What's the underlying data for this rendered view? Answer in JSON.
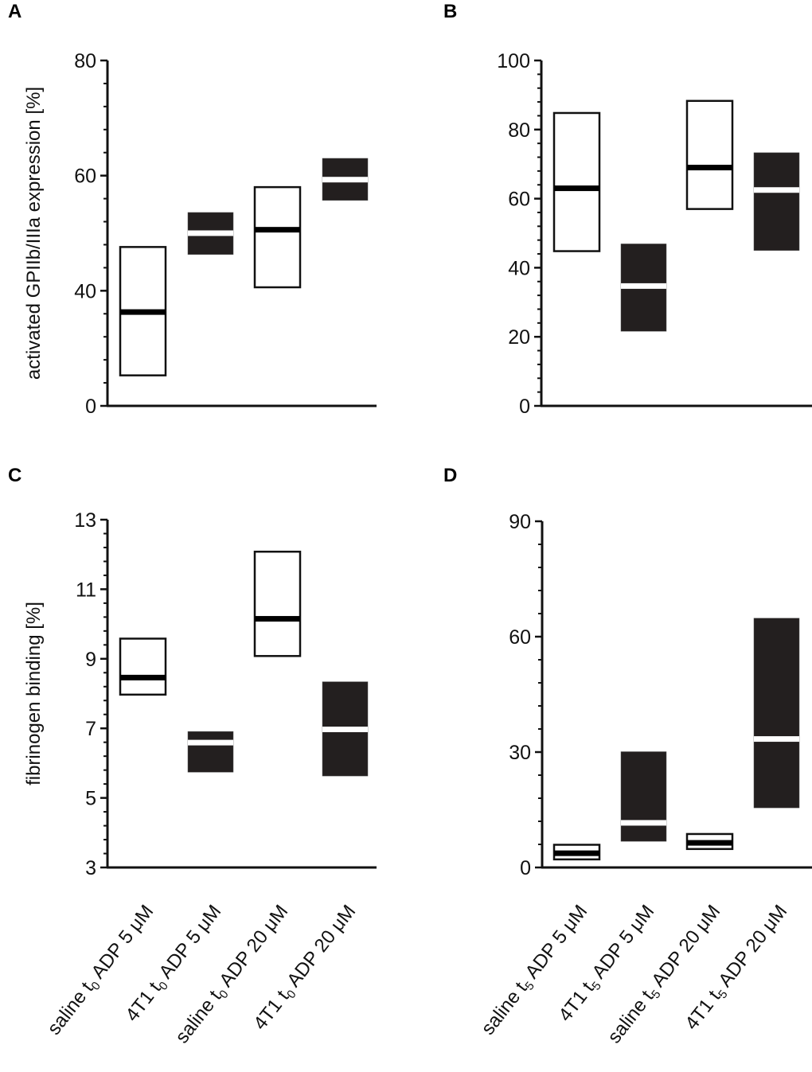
{
  "chart_data": [
    {
      "panel": "A",
      "type": "box",
      "ylabel": "activated GPIIb/IIIa expression [%]",
      "ylim": [
        20,
        80
      ],
      "axis_break": true,
      "yticks": [
        {
          "label": "0",
          "value": 20
        },
        {
          "label": "40",
          "value": 40
        },
        {
          "label": "60",
          "value": 60
        },
        {
          "label": "80",
          "value": 80
        }
      ],
      "minor_tick_step": 4,
      "categories": [
        {
          "pre": "saline t",
          "sub": "0",
          "post": " ADP 5 μM"
        },
        {
          "pre": "4T1 t",
          "sub": "0",
          "post": " ADP 5 μM"
        },
        {
          "pre": "saline t",
          "sub": "0",
          "post": " ADP 20 μM"
        },
        {
          "pre": "4T1 t",
          "sub": "0",
          "post": " ADP 20 μM"
        }
      ],
      "boxes": [
        {
          "group": "saline",
          "filled": false,
          "low": 25.3,
          "median": 36.3,
          "high": 47.6
        },
        {
          "group": "4T1",
          "filled": true,
          "low": 46.3,
          "median": 50.0,
          "high": 53.6
        },
        {
          "group": "saline",
          "filled": false,
          "low": 40.6,
          "median": 50.6,
          "high": 58.0
        },
        {
          "group": "4T1",
          "filled": true,
          "low": 55.7,
          "median": 59.3,
          "high": 63.0
        }
      ]
    },
    {
      "panel": "B",
      "type": "box",
      "ylabel": "",
      "ylim": [
        0,
        100
      ],
      "axis_break": false,
      "yticks": [
        {
          "label": "0",
          "value": 0
        },
        {
          "label": "20",
          "value": 20
        },
        {
          "label": "40",
          "value": 40
        },
        {
          "label": "60",
          "value": 60
        },
        {
          "label": "80",
          "value": 80
        },
        {
          "label": "100",
          "value": 100
        }
      ],
      "minor_tick_step": 4,
      "categories": [
        {
          "pre": "saline t",
          "sub": "5",
          "post": " ADP 5 μM"
        },
        {
          "pre": "4T1 t",
          "sub": "5",
          "post": " ADP 5 μM"
        },
        {
          "pre": "saline t",
          "sub": "5",
          "post": " ADP 20 μM"
        },
        {
          "pre": "4T1 t",
          "sub": "5",
          "post": " ADP 20 μM"
        }
      ],
      "boxes": [
        {
          "group": "saline",
          "filled": false,
          "low": 44.8,
          "median": 63.0,
          "high": 84.8
        },
        {
          "group": "4T1",
          "filled": true,
          "low": 21.6,
          "median": 34.7,
          "high": 46.9
        },
        {
          "group": "saline",
          "filled": false,
          "low": 57.0,
          "median": 69.0,
          "high": 88.3
        },
        {
          "group": "4T1",
          "filled": true,
          "low": 45.0,
          "median": 62.5,
          "high": 73.3
        }
      ]
    },
    {
      "panel": "C",
      "type": "box",
      "ylabel": "fibrinogen binding [%]",
      "ylim": [
        3,
        13
      ],
      "axis_break": false,
      "yticks": [
        {
          "label": "3",
          "value": 3
        },
        {
          "label": "5",
          "value": 5
        },
        {
          "label": "7",
          "value": 7
        },
        {
          "label": "9",
          "value": 9
        },
        {
          "label": "11",
          "value": 11
        },
        {
          "label": "13",
          "value": 13
        }
      ],
      "minor_tick_step": 0.4,
      "categories": [
        {
          "pre": "saline t",
          "sub": "0",
          "post": " ADP 5 μM"
        },
        {
          "pre": "4T1 t",
          "sub": "0",
          "post": " ADP 5 μM"
        },
        {
          "pre": "saline t",
          "sub": "0",
          "post": " ADP 20 μM"
        },
        {
          "pre": "4T1 t",
          "sub": "0",
          "post": " ADP 20 μM"
        }
      ],
      "boxes": [
        {
          "group": "saline",
          "filled": false,
          "low": 7.97,
          "median": 8.46,
          "high": 9.58
        },
        {
          "group": "4T1",
          "filled": true,
          "low": 5.74,
          "median": 6.59,
          "high": 6.91
        },
        {
          "group": "saline",
          "filled": false,
          "low": 9.08,
          "median": 10.15,
          "high": 12.08
        },
        {
          "group": "4T1",
          "filled": true,
          "low": 5.63,
          "median": 6.97,
          "high": 8.34
        }
      ]
    },
    {
      "panel": "D",
      "type": "box",
      "ylabel": "",
      "ylim": [
        0,
        90
      ],
      "axis_break": false,
      "yticks": [
        {
          "label": "0",
          "value": 0
        },
        {
          "label": "30",
          "value": 30
        },
        {
          "label": "60",
          "value": 60
        },
        {
          "label": "90",
          "value": 90
        }
      ],
      "minor_tick_step": 6,
      "categories": [
        {
          "pre": "saline t",
          "sub": "5",
          "post": " ADP 5 μM"
        },
        {
          "pre": "4T1 t",
          "sub": "5",
          "post": " ADP 5 μM"
        },
        {
          "pre": "saline t",
          "sub": "5",
          "post": " ADP 20 μM"
        },
        {
          "pre": "4T1 t",
          "sub": "5",
          "post": " ADP 20 μM"
        }
      ],
      "boxes": [
        {
          "group": "saline",
          "filled": false,
          "low": 2.1,
          "median": 3.7,
          "high": 5.9
        },
        {
          "group": "4T1",
          "filled": true,
          "low": 6.8,
          "median": 11.6,
          "high": 30.1
        },
        {
          "group": "saline",
          "filled": false,
          "low": 4.8,
          "median": 6.4,
          "high": 8.7
        },
        {
          "group": "4T1",
          "filled": true,
          "low": 15.5,
          "median": 33.4,
          "high": 64.8
        }
      ]
    }
  ],
  "colors": {
    "filled_box": "#231f1f",
    "open_box_stroke": "#111111",
    "median_on_filled": "#ffffff",
    "median_on_open": "#000000"
  }
}
